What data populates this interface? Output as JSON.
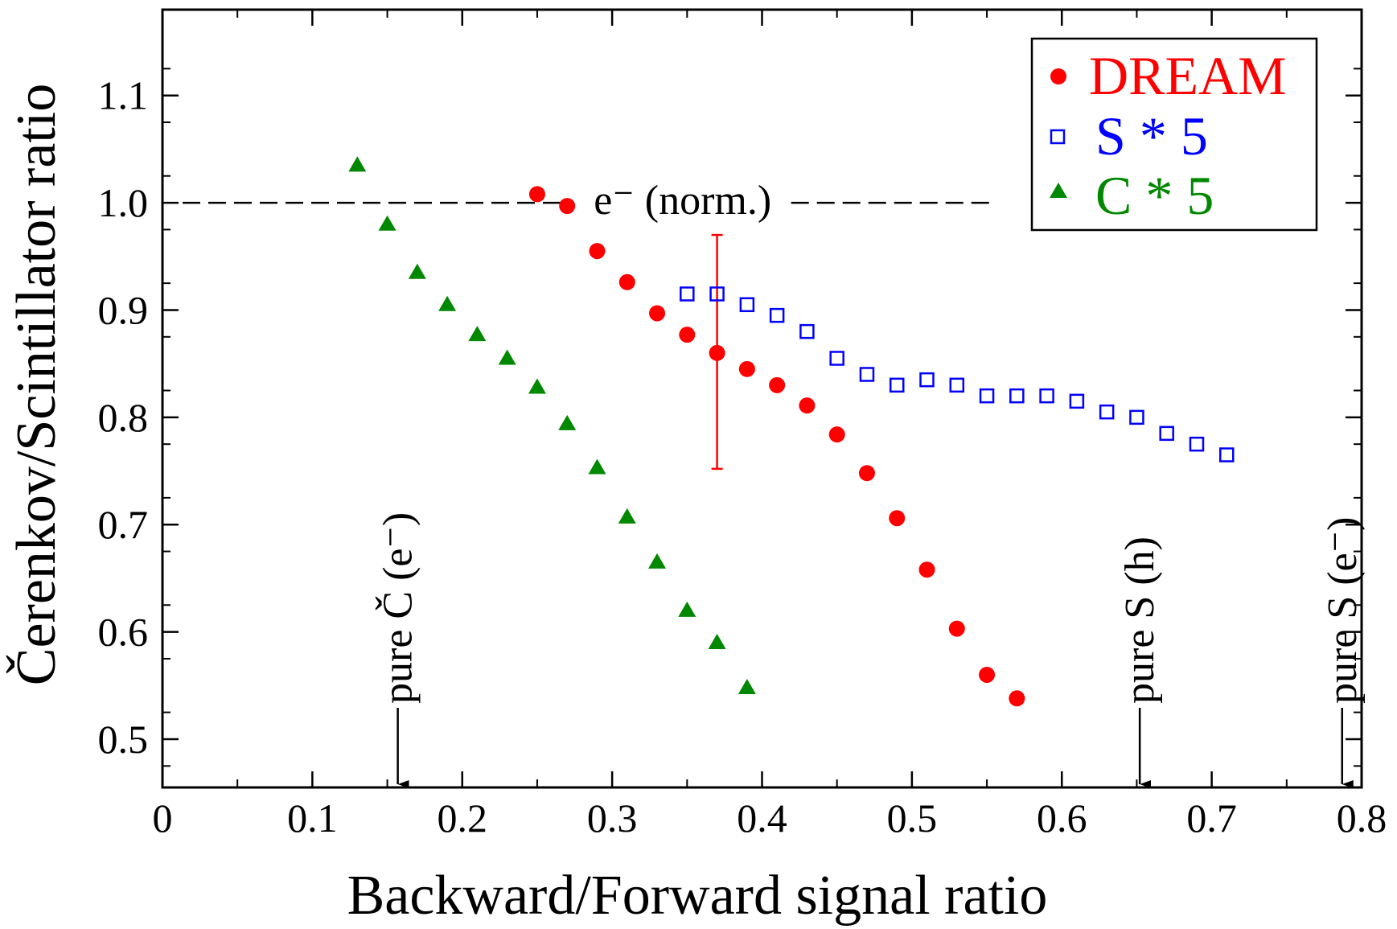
{
  "chart_data": {
    "type": "scatter",
    "xlabel": "Backward/Forward signal ratio",
    "ylabel": "Čerenkov/Scintillator ratio",
    "xlim": [
      0,
      0.8
    ],
    "ylim": [
      0.455,
      1.18
    ],
    "x_ticks": [
      0,
      0.1,
      0.2,
      0.3,
      0.4,
      0.5,
      0.6,
      0.7,
      0.8
    ],
    "x_tick_labels": [
      "0",
      "0.1",
      "0.2",
      "0.3",
      "0.4",
      "0.5",
      "0.6",
      "0.7",
      "0.8"
    ],
    "y_ticks": [
      0.5,
      0.6,
      0.7,
      0.8,
      0.9,
      1.0,
      1.1
    ],
    "y_tick_labels": [
      "0.5",
      "0.6",
      "0.7",
      "0.8",
      "0.9",
      "1.0",
      "1.1"
    ],
    "legend_position": "top-right",
    "series": [
      {
        "name": "DREAM",
        "marker": "circle",
        "color": "#ff0000",
        "x": [
          0.25,
          0.27,
          0.29,
          0.31,
          0.33,
          0.35,
          0.37,
          0.39,
          0.41,
          0.43,
          0.45,
          0.47,
          0.49,
          0.51,
          0.53,
          0.55,
          0.57
        ],
        "y": [
          1.008,
          0.997,
          0.955,
          0.926,
          0.897,
          0.877,
          0.86,
          0.845,
          0.83,
          0.811,
          0.784,
          0.748,
          0.706,
          0.658,
          0.603,
          0.56,
          0.538
        ]
      },
      {
        "name": "S * 5",
        "marker": "open-square",
        "color": "#0000ff",
        "x": [
          0.35,
          0.37,
          0.39,
          0.41,
          0.43,
          0.45,
          0.47,
          0.49,
          0.51,
          0.53,
          0.55,
          0.57,
          0.59,
          0.61,
          0.63,
          0.65,
          0.67,
          0.69,
          0.71
        ],
        "y": [
          0.915,
          0.915,
          0.905,
          0.895,
          0.88,
          0.855,
          0.84,
          0.83,
          0.835,
          0.83,
          0.82,
          0.82,
          0.82,
          0.815,
          0.805,
          0.8,
          0.785,
          0.775,
          0.765
        ]
      },
      {
        "name": "C * 5",
        "marker": "triangle",
        "color": "#008800",
        "x": [
          0.13,
          0.15,
          0.17,
          0.19,
          0.21,
          0.23,
          0.25,
          0.27,
          0.29,
          0.31,
          0.33,
          0.35,
          0.37,
          0.39
        ],
        "y": [
          1.035,
          0.98,
          0.935,
          0.905,
          0.877,
          0.855,
          0.828,
          0.794,
          0.753,
          0.707,
          0.665,
          0.62,
          0.59,
          0.548
        ]
      }
    ],
    "error_bar": {
      "x": 0.37,
      "y_low": 0.752,
      "y_high": 0.97,
      "color": "#ff0000"
    },
    "reference_line": {
      "y": 1.0,
      "x_start": 0.0,
      "x_end": 0.555,
      "label": "e⁻ (norm.)",
      "style": "dashed"
    },
    "markers": [
      {
        "x": 0.157,
        "label": "pure Č (e⁻)"
      },
      {
        "x": 0.652,
        "label": "pure S (h)"
      },
      {
        "x": 0.787,
        "label": "pure S (e⁻)"
      }
    ]
  }
}
